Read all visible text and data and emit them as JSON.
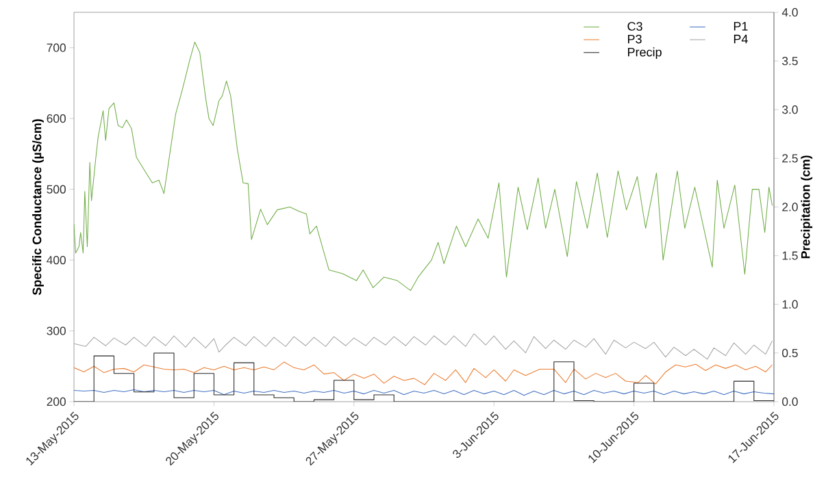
{
  "chart_data": {
    "type": "line",
    "ylabel": "Specific Conductance (µS/cm)",
    "y2label": "Precipitation (cm)",
    "xlim": [
      "2015-05-13",
      "2015-06-17"
    ],
    "xticks": [
      {
        "value": "2015-05-13",
        "label": "13-May-2015"
      },
      {
        "value": "2015-05-20",
        "label": "20-May-2015"
      },
      {
        "value": "2015-05-27",
        "label": "27-May-2015"
      },
      {
        "value": "2015-06-03",
        "label": "3-Jun-2015"
      },
      {
        "value": "2015-06-10",
        "label": "10-Jun-2015"
      },
      {
        "value": "2015-06-17",
        "label": "17-Jun-2015"
      }
    ],
    "ylim": [
      200,
      750
    ],
    "yticks": [
      200,
      300,
      400,
      500,
      600,
      700
    ],
    "y2lim": [
      0,
      4
    ],
    "y2ticks": [
      {
        "value": 0,
        "label": "0.0"
      },
      {
        "value": 0.5,
        "label": "0.5"
      },
      {
        "value": 1,
        "label": "1.0"
      },
      {
        "value": 1.5,
        "label": "1.5"
      },
      {
        "value": 2,
        "label": "2.0"
      },
      {
        "value": 2.5,
        "label": "2.5"
      },
      {
        "value": 3,
        "label": "3.0"
      },
      {
        "value": 3.5,
        "label": "3.5"
      },
      {
        "value": 4,
        "label": "4.0"
      }
    ],
    "legend": "top right",
    "series": [
      {
        "name": "C3",
        "color": "#70ad47",
        "x": [
          "2015-05-13T00:00",
          "2015-05-13T02:00",
          "2015-05-13T06:00",
          "2015-05-13T08:00",
          "2015-05-13T11:00",
          "2015-05-13T13:00",
          "2015-05-13T16:00",
          "2015-05-13T19:00",
          "2015-05-13T21:00",
          "2015-05-14T02:00",
          "2015-05-14T05:00",
          "2015-05-14T11:00",
          "2015-05-14T14:00",
          "2015-05-14T18:00",
          "2015-05-15T00:00",
          "2015-05-15T05:00",
          "2015-05-15T10:00",
          "2015-05-15T15:00",
          "2015-05-15T21:00",
          "2015-05-16T03:00",
          "2015-05-16T12:00",
          "2015-05-16T22:00",
          "2015-05-17T06:00",
          "2015-05-17T12:00",
          "2015-05-18T02:00",
          "2015-05-18T11:00",
          "2015-05-18T19:00",
          "2015-05-19T01:00",
          "2015-05-19T07:00",
          "2015-05-19T14:00",
          "2015-05-19T18:00",
          "2015-05-19T23:00",
          "2015-05-20T06:00",
          "2015-05-20T10:00",
          "2015-05-20T15:00",
          "2015-05-20T20:00",
          "2015-05-21T04:00",
          "2015-05-21T11:00",
          "2015-05-21T17:00",
          "2015-05-21T21:00",
          "2015-05-22T08:00",
          "2015-05-22T16:00",
          "2015-05-23T04:00",
          "2015-05-23T19:00",
          "2015-05-24T06:00",
          "2015-05-24T15:00",
          "2015-05-24T19:00",
          "2015-05-25T03:00",
          "2015-05-25T10:00",
          "2015-05-25T18:00",
          "2015-05-26T10:00",
          "2015-05-27T03:00",
          "2015-05-27T11:00",
          "2015-05-27T23:00",
          "2015-05-28T12:00",
          "2015-05-29T04:00",
          "2015-05-29T20:00",
          "2015-05-30T05:00",
          "2015-05-30T21:00",
          "2015-05-31T05:00",
          "2015-05-31T12:00",
          "2015-06-01T03:00",
          "2015-06-01T14:00",
          "2015-06-02T05:00",
          "2015-06-02T17:00",
          "2015-06-03T06:00",
          "2015-06-03T15:00",
          "2015-06-04T05:00",
          "2015-06-04T16:00",
          "2015-06-05T05:00",
          "2015-06-05T14:00",
          "2015-06-06T01:00",
          "2015-06-06T16:00",
          "2015-06-07T03:00",
          "2015-06-07T16:00",
          "2015-06-08T04:00",
          "2015-06-08T16:00",
          "2015-06-09T05:00",
          "2015-06-09T15:00",
          "2015-06-10T04:00",
          "2015-06-10T14:00",
          "2015-06-11T03:00",
          "2015-06-11T11:00",
          "2015-06-12T04:00",
          "2015-06-12T13:00",
          "2015-06-13T01:00",
          "2015-06-13T22:00",
          "2015-06-14T04:00",
          "2015-06-14T12:00",
          "2015-06-15T01:00",
          "2015-06-15T13:00",
          "2015-06-15T22:00",
          "2015-06-16T06:00",
          "2015-06-16T13:00",
          "2015-06-16T18:00",
          "2015-06-16T22:00"
        ],
        "values": [
          451,
          410,
          419,
          439,
          410,
          497,
          419,
          538,
          484,
          542,
          574,
          611,
          569,
          614,
          622,
          590,
          587,
          598,
          586,
          545,
          528,
          509,
          513,
          494,
          606,
          645,
          683,
          708,
          693,
          629,
          600,
          590,
          625,
          632,
          653,
          632,
          557,
          509,
          508,
          429,
          472,
          450,
          471,
          475,
          469,
          465,
          437,
          448,
          419,
          386,
          381,
          371,
          386,
          361,
          376,
          371,
          357,
          376,
          400,
          425,
          395,
          448,
          419,
          458,
          431,
          509,
          376,
          503,
          443,
          516,
          445,
          500,
          405,
          511,
          445,
          523,
          432,
          526,
          471,
          518,
          445,
          523,
          400,
          526,
          445,
          503,
          390,
          513,
          445,
          506,
          380,
          500,
          500,
          439,
          503,
          477
        ]
      },
      {
        "name": "P1",
        "color": "#4472c4",
        "x": [
          "2015-05-13T00:00",
          "2015-05-13T12:00",
          "2015-05-14T00:00",
          "2015-05-14T12:00",
          "2015-05-15T00:00",
          "2015-05-15T12:00",
          "2015-05-16T00:00",
          "2015-05-16T12:00",
          "2015-05-17T00:00",
          "2015-05-17T12:00",
          "2015-05-18T00:00",
          "2015-05-18T12:00",
          "2015-05-19T00:00",
          "2015-05-19T12:00",
          "2015-05-20T00:00",
          "2015-05-20T12:00",
          "2015-05-21T00:00",
          "2015-05-21T12:00",
          "2015-05-22T00:00",
          "2015-05-22T12:00",
          "2015-05-23T00:00",
          "2015-05-23T12:00",
          "2015-05-24T00:00",
          "2015-05-24T12:00",
          "2015-05-25T00:00",
          "2015-05-25T12:00",
          "2015-05-26T00:00",
          "2015-05-26T12:00",
          "2015-05-27T00:00",
          "2015-05-27T12:00",
          "2015-05-28T00:00",
          "2015-05-28T12:00",
          "2015-05-29T00:00",
          "2015-05-29T12:00",
          "2015-05-30T00:00",
          "2015-05-30T12:00",
          "2015-05-31T00:00",
          "2015-05-31T12:00",
          "2015-06-01T00:00",
          "2015-06-01T12:00",
          "2015-06-02T00:00",
          "2015-06-02T12:00",
          "2015-06-03T00:00",
          "2015-06-03T12:00",
          "2015-06-04T00:00",
          "2015-06-04T12:00",
          "2015-06-05T00:00",
          "2015-06-05T12:00",
          "2015-06-06T00:00",
          "2015-06-06T12:00",
          "2015-06-07T00:00",
          "2015-06-07T12:00",
          "2015-06-08T00:00",
          "2015-06-08T12:00",
          "2015-06-09T00:00",
          "2015-06-09T12:00",
          "2015-06-10T00:00",
          "2015-06-10T12:00",
          "2015-06-11T00:00",
          "2015-06-11T12:00",
          "2015-06-12T00:00",
          "2015-06-12T12:00",
          "2015-06-13T00:00",
          "2015-06-13T12:00",
          "2015-06-14T00:00",
          "2015-06-14T12:00",
          "2015-06-15T00:00",
          "2015-06-15T12:00",
          "2015-06-16T00:00",
          "2015-06-16T12:00",
          "2015-06-17T00:00"
        ],
        "values": [
          216,
          215,
          216,
          213,
          216,
          214,
          217,
          214,
          216,
          214,
          216,
          213,
          216,
          214,
          216,
          210,
          215,
          212,
          215,
          213,
          216,
          213,
          215,
          212,
          215,
          213,
          216,
          212,
          215,
          211,
          216,
          212,
          216,
          210,
          215,
          212,
          216,
          211,
          216,
          210,
          216,
          211,
          215,
          210,
          216,
          209,
          215,
          210,
          216,
          211,
          215,
          210,
          216,
          212,
          215,
          211,
          215,
          212,
          215,
          210,
          215,
          211,
          214,
          211,
          215,
          210,
          215,
          211,
          214,
          212,
          211
        ]
      },
      {
        "name": "P3",
        "color": "#ed7d31",
        "x": [
          "2015-05-13T00:00",
          "2015-05-13T12:00",
          "2015-05-14T00:00",
          "2015-05-14T12:00",
          "2015-05-15T00:00",
          "2015-05-15T12:00",
          "2015-05-16T00:00",
          "2015-05-16T12:00",
          "2015-05-17T00:00",
          "2015-05-17T12:00",
          "2015-05-18T00:00",
          "2015-05-18T12:00",
          "2015-05-19T00:00",
          "2015-05-19T12:00",
          "2015-05-20T00:00",
          "2015-05-20T12:00",
          "2015-05-21T00:00",
          "2015-05-21T12:00",
          "2015-05-22T00:00",
          "2015-05-22T12:00",
          "2015-05-23T00:00",
          "2015-05-23T12:00",
          "2015-05-24T00:00",
          "2015-05-24T12:00",
          "2015-05-25T00:00",
          "2015-05-25T12:00",
          "2015-05-26T00:00",
          "2015-05-26T12:00",
          "2015-05-27T00:00",
          "2015-05-27T12:00",
          "2015-05-28T00:00",
          "2015-05-28T12:00",
          "2015-05-29T00:00",
          "2015-05-29T12:00",
          "2015-05-30T00:00",
          "2015-05-30T13:00",
          "2015-05-31T00:00",
          "2015-05-31T14:00",
          "2015-06-01T02:00",
          "2015-06-01T14:00",
          "2015-06-02T00:00",
          "2015-06-02T14:00",
          "2015-06-03T00:00",
          "2015-06-03T14:00",
          "2015-06-04T00:00",
          "2015-06-04T14:00",
          "2015-06-05T07:00",
          "2015-06-06T00:00",
          "2015-06-06T14:00",
          "2015-06-07T00:00",
          "2015-06-07T14:00",
          "2015-06-08T02:00",
          "2015-06-08T14:00",
          "2015-06-09T02:00",
          "2015-06-09T14:00",
          "2015-06-10T05:00",
          "2015-06-10T14:00",
          "2015-06-11T02:00",
          "2015-06-11T14:00",
          "2015-06-12T02:00",
          "2015-06-12T14:00",
          "2015-06-13T02:00",
          "2015-06-13T14:00",
          "2015-06-14T02:00",
          "2015-06-14T14:00",
          "2015-06-15T02:00",
          "2015-06-15T14:00",
          "2015-06-16T02:00",
          "2015-06-16T14:00",
          "2015-06-16T22:00"
        ],
        "values": [
          248,
          242,
          250,
          241,
          246,
          247,
          242,
          252,
          249,
          246,
          245,
          246,
          241,
          248,
          245,
          250,
          245,
          248,
          245,
          249,
          245,
          256,
          248,
          245,
          252,
          239,
          241,
          230,
          239,
          233,
          239,
          226,
          236,
          230,
          233,
          224,
          240,
          230,
          245,
          227,
          247,
          234,
          245,
          229,
          245,
          237,
          246,
          246,
          227,
          246,
          232,
          240,
          234,
          240,
          229,
          227,
          237,
          225,
          242,
          252,
          249,
          253,
          244,
          252,
          247,
          252,
          245,
          250,
          242,
          252
        ]
      },
      {
        "name": "P4",
        "color": "#a5a5a5",
        "x": [
          "2015-05-13T00:00",
          "2015-05-13T14:00",
          "2015-05-14T00:00",
          "2015-05-14T14:00",
          "2015-05-15T00:00",
          "2015-05-15T14:00",
          "2015-05-16T00:00",
          "2015-05-16T14:00",
          "2015-05-17T00:00",
          "2015-05-17T14:00",
          "2015-05-18T00:00",
          "2015-05-18T14:00",
          "2015-05-19T00:00",
          "2015-05-19T14:00",
          "2015-05-20T00:00",
          "2015-05-20T06:00",
          "2015-05-20T14:00",
          "2015-05-21T00:00",
          "2015-05-21T14:00",
          "2015-05-22T00:00",
          "2015-05-22T14:00",
          "2015-05-23T00:00",
          "2015-05-23T14:00",
          "2015-05-24T00:00",
          "2015-05-24T14:00",
          "2015-05-25T00:00",
          "2015-05-25T14:00",
          "2015-05-26T00:00",
          "2015-05-26T14:00",
          "2015-05-27T00:00",
          "2015-05-27T14:00",
          "2015-05-28T00:00",
          "2015-05-28T14:00",
          "2015-05-29T00:00",
          "2015-05-29T14:00",
          "2015-05-30T00:00",
          "2015-05-30T14:00",
          "2015-05-31T00:00",
          "2015-05-31T14:00",
          "2015-06-01T00:00",
          "2015-06-01T14:00",
          "2015-06-02T00:00",
          "2015-06-02T14:00",
          "2015-06-03T00:00",
          "2015-06-03T14:00",
          "2015-06-04T00:00",
          "2015-06-04T14:00",
          "2015-06-05T00:00",
          "2015-06-05T14:00",
          "2015-06-06T00:00",
          "2015-06-06T14:00",
          "2015-06-07T00:00",
          "2015-06-07T14:00",
          "2015-06-08T00:00",
          "2015-06-08T14:00",
          "2015-06-09T00:00",
          "2015-06-09T14:00",
          "2015-06-10T00:00",
          "2015-06-10T14:00",
          "2015-06-11T00:00",
          "2015-06-11T14:00",
          "2015-06-12T00:00",
          "2015-06-12T14:00",
          "2015-06-13T00:00",
          "2015-06-13T16:00",
          "2015-06-14T00:00",
          "2015-06-14T14:00",
          "2015-06-15T00:00",
          "2015-06-15T14:00",
          "2015-06-16T00:00",
          "2015-06-16T14:00",
          "2015-06-16T22:00"
        ],
        "values": [
          282,
          278,
          291,
          279,
          290,
          280,
          291,
          278,
          292,
          279,
          293,
          277,
          291,
          276,
          289,
          270,
          280,
          291,
          279,
          292,
          278,
          291,
          278,
          292,
          279,
          291,
          278,
          292,
          279,
          290,
          279,
          291,
          280,
          292,
          279,
          292,
          280,
          293,
          280,
          293,
          278,
          296,
          280,
          293,
          274,
          286,
          269,
          292,
          275,
          287,
          274,
          287,
          277,
          289,
          267,
          287,
          276,
          284,
          275,
          284,
          263,
          277,
          265,
          274,
          260,
          276,
          265,
          283,
          267,
          280,
          267,
          286
        ]
      },
      {
        "name": "Precip",
        "type": "step",
        "axis": "y2",
        "color": "#262626",
        "x": [
          "2015-05-13",
          "2015-05-14",
          "2015-05-15",
          "2015-05-16",
          "2015-05-17",
          "2015-05-18",
          "2015-05-19",
          "2015-05-20",
          "2015-05-21",
          "2015-05-22",
          "2015-05-23",
          "2015-05-24",
          "2015-05-25",
          "2015-05-26",
          "2015-05-27",
          "2015-05-28",
          "2015-05-29",
          "2015-05-30",
          "2015-05-31",
          "2015-06-01",
          "2015-06-02",
          "2015-06-03",
          "2015-06-04",
          "2015-06-05",
          "2015-06-06",
          "2015-06-07",
          "2015-06-08",
          "2015-06-09",
          "2015-06-10",
          "2015-06-11",
          "2015-06-12",
          "2015-06-13",
          "2015-06-14",
          "2015-06-15",
          "2015-06-16",
          "2015-06-17"
        ],
        "values": [
          0,
          0.47,
          0.29,
          0.1,
          0.5,
          0.04,
          0.29,
          0.07,
          0.4,
          0.07,
          0.04,
          0,
          0.02,
          0.22,
          0.02,
          0.07,
          0,
          0,
          0,
          0,
          0,
          0,
          0,
          0,
          0.41,
          0.01,
          0,
          0,
          0.19,
          0,
          0,
          0,
          0,
          0.21,
          0.01,
          0.01
        ]
      }
    ]
  }
}
